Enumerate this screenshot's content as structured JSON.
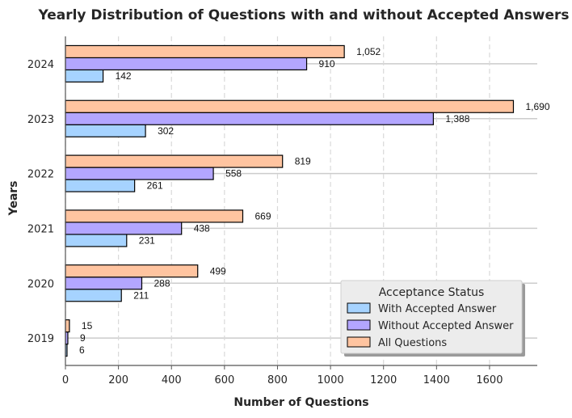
{
  "chart_data": {
    "type": "bar",
    "orientation": "horizontal",
    "title": "Yearly Distribution of Questions with and without Accepted Answers",
    "xlabel": "Number of Questions",
    "ylabel": "Years",
    "categories": [
      "2019",
      "2020",
      "2021",
      "2022",
      "2023",
      "2024"
    ],
    "series": [
      {
        "name": "With Accepted Answer",
        "values": [
          6,
          211,
          231,
          261,
          302,
          142
        ],
        "labels": [
          "6",
          "211",
          "231",
          "261",
          "302",
          "142"
        ],
        "color": "#a6d3ff"
      },
      {
        "name": "Without Accepted Answer",
        "values": [
          9,
          288,
          438,
          558,
          1388,
          910
        ],
        "labels": [
          "9",
          "288",
          "438",
          "558",
          "1,388",
          "910"
        ],
        "color": "#b3a6ff"
      },
      {
        "name": "All Questions",
        "values": [
          15,
          499,
          669,
          819,
          1690,
          1052
        ],
        "labels": [
          "15",
          "499",
          "669",
          "819",
          "1,690",
          "1,052"
        ],
        "color": "#ffc4a0"
      }
    ],
    "xlim": [
      0,
      1780
    ],
    "xticks": [
      0,
      200,
      400,
      600,
      800,
      1000,
      1200,
      1400,
      1600
    ],
    "grid": true,
    "legend": {
      "title": "Acceptance Status",
      "placement": "lower-right"
    }
  }
}
